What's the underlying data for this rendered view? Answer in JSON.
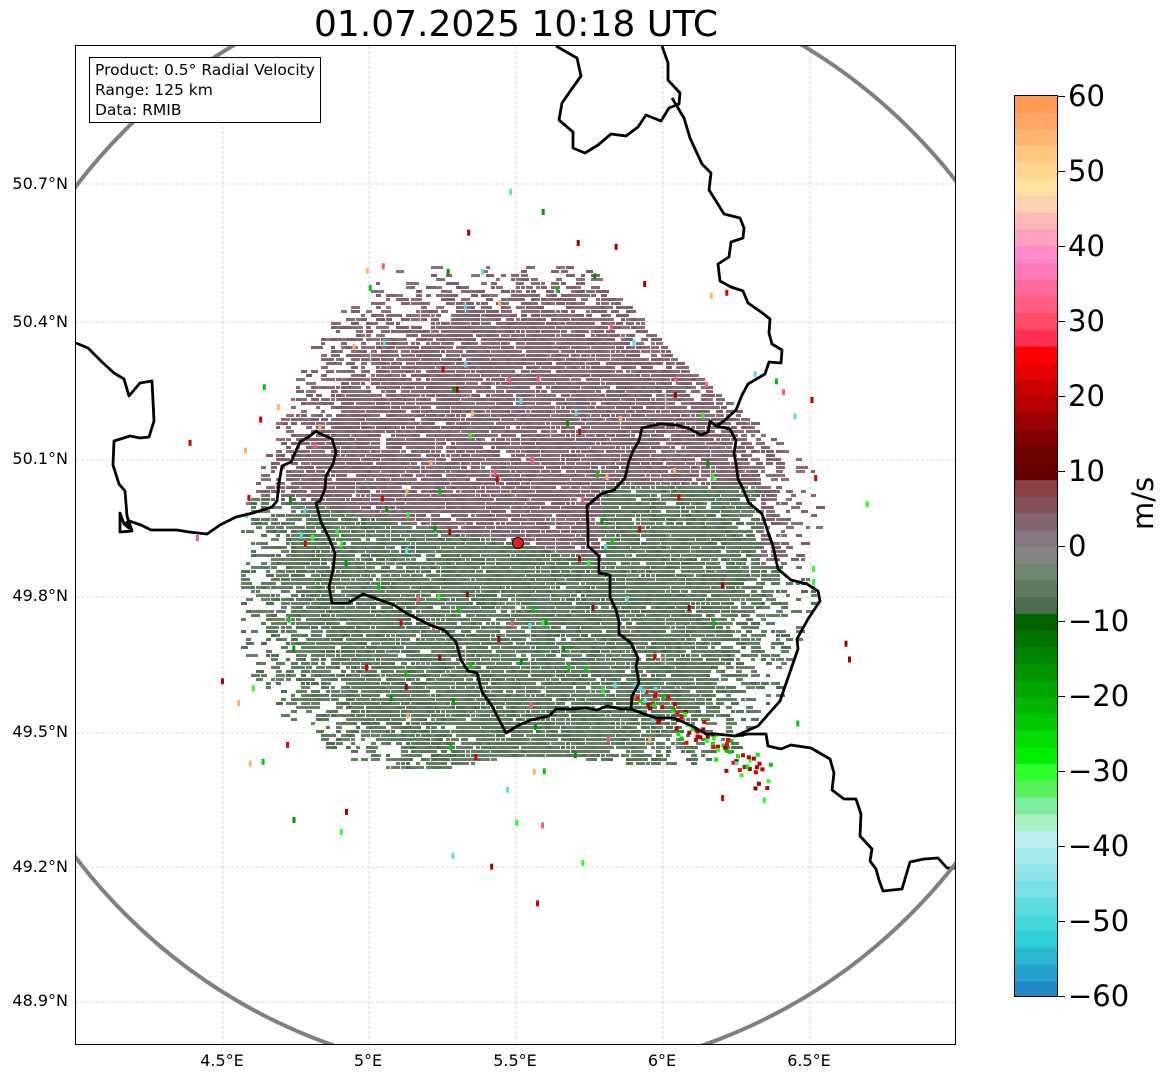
{
  "title": "01.07.2025 10:18 UTC",
  "info_box": {
    "product": "Product: 0.5° Radial Velocity",
    "range": "Range: 125 km",
    "data": "Data: RMIB"
  },
  "map": {
    "lat_ticks": [
      "50.7°N",
      "50.4°N",
      "50.1°N",
      "49.8°N",
      "49.5°N",
      "49.2°N",
      "48.9°N"
    ],
    "lon_ticks": [
      "4.5°E",
      "5°E",
      "5.5°E",
      "6°E",
      "6.5°E"
    ],
    "radar_site": {
      "lon": 5.505,
      "lat": 49.915,
      "color": "#e0201c"
    },
    "range_ring_color": "#808080",
    "border_color": "#000000",
    "approaching_color": "#5a7a5a",
    "receding_color": "#836670"
  },
  "colorbar": {
    "unit": "m/s",
    "ticks": [
      "60",
      "50",
      "40",
      "30",
      "20",
      "10",
      "0",
      "−10",
      "−20",
      "−30",
      "−40",
      "−50",
      "−60"
    ],
    "colors_top_to_bottom": [
      "#ff9a55",
      "#ffa865",
      "#ffb670",
      "#ffc680",
      "#ffd590",
      "#ffe1a0",
      "#ffd2b0",
      "#ffb8b8",
      "#ff9fc0",
      "#ff8acd",
      "#ff7ab8",
      "#ff6a9a",
      "#ff5a80",
      "#ff4a68",
      "#ff3050",
      "#ff0000",
      "#e60000",
      "#cc0000",
      "#b30000",
      "#990000",
      "#800000",
      "#700000",
      "#660000",
      "#8a4048",
      "#84505a",
      "#856670",
      "#857880",
      "#848484",
      "#6e8570",
      "#5f7a5f",
      "#4d6e4d",
      "#006400",
      "#007500",
      "#008500",
      "#009500",
      "#00a600",
      "#00b600",
      "#00c800",
      "#00dc00",
      "#00f000",
      "#30ff30",
      "#58f058",
      "#80f0a0",
      "#a8f0c0",
      "#b8eef0",
      "#a6e8ec",
      "#90e4e8",
      "#78e0e4",
      "#60dce0",
      "#40d8dc",
      "#30d0d8",
      "#2ab8d0",
      "#26a0cc",
      "#2288c8"
    ]
  }
}
